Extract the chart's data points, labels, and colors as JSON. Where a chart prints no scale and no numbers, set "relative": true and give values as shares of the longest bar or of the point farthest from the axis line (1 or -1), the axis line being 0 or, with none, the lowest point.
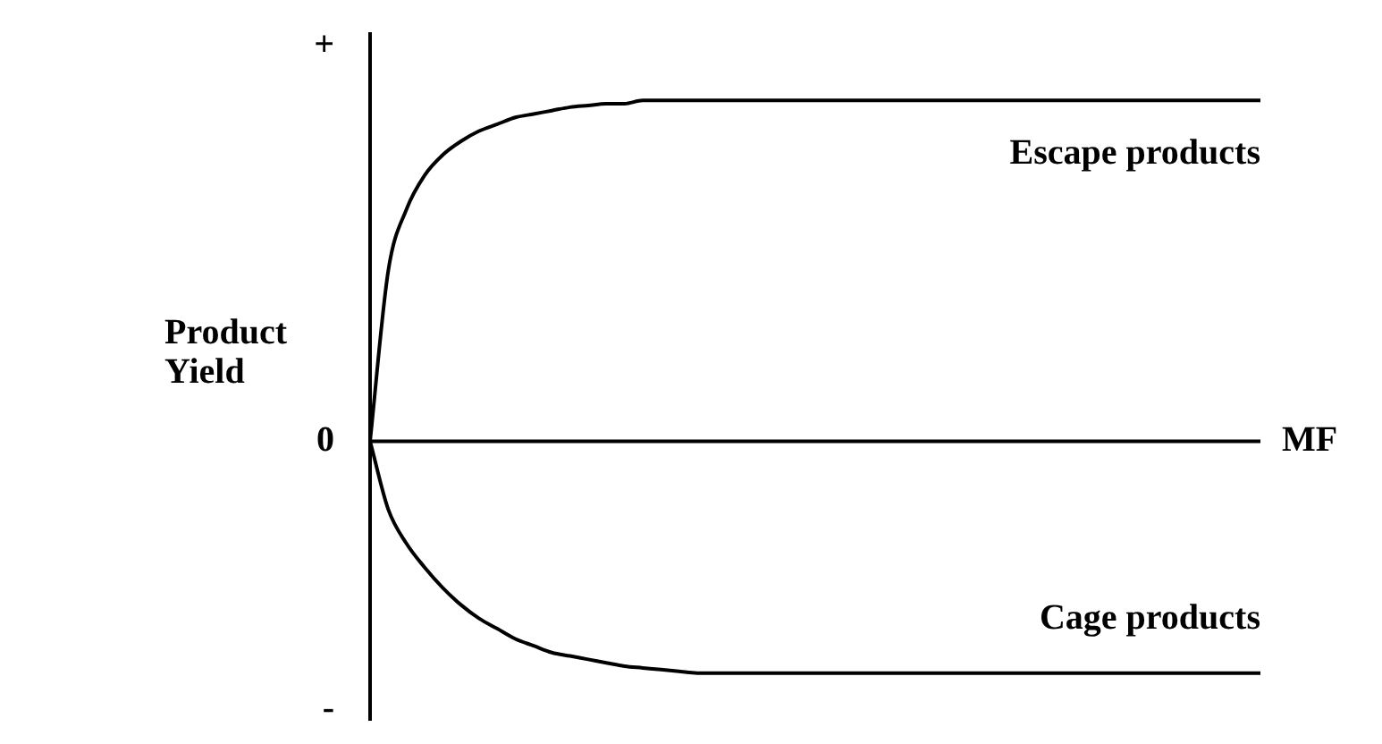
{
  "chart_data": {
    "type": "line",
    "relative": true,
    "ylabel": "Product Yield",
    "xlabel": "MF",
    "legend": false,
    "marker": "none",
    "line_style": "solid",
    "categories": [
      null,
      null,
      null,
      null,
      null,
      null,
      null,
      null,
      null,
      null,
      null,
      null,
      null,
      null,
      null,
      null,
      null,
      null,
      null,
      null,
      null,
      null,
      null,
      null,
      null,
      null,
      null,
      null,
      null,
      null,
      null,
      null,
      null,
      null,
      null,
      null,
      null,
      null,
      null,
      null,
      null,
      null,
      null,
      null,
      null,
      null,
      null,
      null,
      null,
      null
    ],
    "series": [
      {
        "name": "Escape products",
        "color": "#000000",
        "values": [
          0,
          0.5,
          0.68,
          0.78,
          0.84,
          0.88,
          0.91,
          0.93,
          0.95,
          0.96,
          0.97,
          0.98,
          0.985,
          0.99,
          0.99,
          1,
          1,
          1,
          1,
          1,
          1,
          1,
          1,
          1,
          1,
          1,
          1,
          1,
          1,
          1,
          1,
          1,
          1,
          1,
          1,
          1,
          1,
          1,
          1,
          1,
          1,
          1,
          1,
          1,
          1,
          1,
          1,
          1,
          1,
          1
        ]
      },
      {
        "name": "Cage products",
        "color": "#000000",
        "values": [
          0,
          -0.2,
          -0.3,
          -0.37,
          -0.43,
          -0.48,
          -0.52,
          -0.55,
          -0.58,
          -0.6,
          -0.62,
          -0.63,
          -0.64,
          -0.65,
          -0.66,
          -0.665,
          -0.67,
          -0.675,
          -0.68,
          -0.68,
          -0.68,
          -0.68,
          -0.68,
          -0.68,
          -0.68,
          -0.68,
          -0.68,
          -0.68,
          -0.68,
          -0.68,
          -0.68,
          -0.68,
          -0.68,
          -0.68,
          -0.68,
          -0.68,
          -0.68,
          -0.68,
          -0.68,
          -0.68,
          -0.68,
          -0.68,
          -0.68,
          -0.68,
          -0.68,
          -0.68,
          -0.68,
          -0.68,
          -0.68,
          -0.68
        ]
      }
    ],
    "annotations": [
      "+",
      "0",
      "-"
    ]
  }
}
